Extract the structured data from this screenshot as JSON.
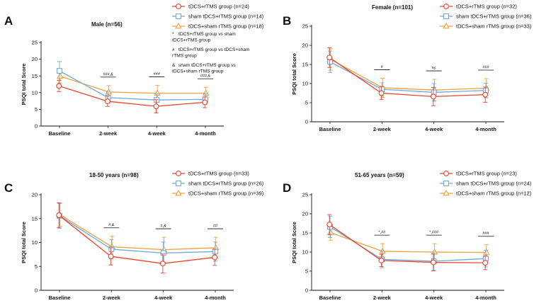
{
  "figure": {
    "ylabel": "PSQI total Score",
    "xcats": [
      "Baseline",
      "2-week",
      "4-week",
      "4-month"
    ],
    "colors": {
      "tdcs_rtms": "#e8452c",
      "sham_tdcs_rtms": "#6fa8dc",
      "tdcs_sham_rtms": "#f0a03c"
    },
    "marker_names": {
      "tdcs_rtms": "circle",
      "sham_tdcs_rtms": "square",
      "tdcs_sham_rtms": "triangle"
    }
  },
  "chart_data": [
    {
      "panel": "A",
      "type": "line",
      "title": "Male (n=56)",
      "show_title": true,
      "xlabel": "",
      "ylabel": "PSQI total Score",
      "categories": [
        "Baseline",
        "2-week",
        "4-week",
        "4-month"
      ],
      "ylim": [
        0,
        25
      ],
      "yticks": [
        0,
        5,
        10,
        15,
        20,
        25
      ],
      "legend_position": "top-right",
      "series": [
        {
          "key": "tdcs_rtms",
          "name": "tDCS+rTMS group (n=24)",
          "values": [
            12.0,
            7.4,
            5.9,
            7.1
          ],
          "err": [
            1.7,
            1.5,
            2.0,
            1.6
          ]
        },
        {
          "key": "sham_tdcs_rtms",
          "name": "sham tDCS+rTMS group (n=14)",
          "values": [
            16.5,
            8.5,
            7.8,
            8.0
          ],
          "err": [
            2.8,
            1.7,
            1.8,
            1.6
          ]
        },
        {
          "key": "tdcs_sham_rtms",
          "name": "tDCS+sham rTMS group (n=18)",
          "values": [
            14.9,
            10.2,
            9.8,
            9.8
          ],
          "err": [
            2.0,
            1.9,
            2.4,
            1.8
          ]
        }
      ],
      "annotations": [
        "###,&",
        "###",
        "###,&"
      ],
      "notes": [
        {
          "sym": "*",
          "lines": [
            "tDCS+rTMS group vs sham",
            "tDCS+rTMS group"
          ]
        },
        {
          "sym": "#",
          "lines": [
            "tDCS+rTMS group vs tDCS+sham",
            "rTMS group"
          ]
        },
        {
          "sym": "&",
          "lines": [
            "sham tDCS+rTMS group vs",
            "tDCS+sham rTMS group"
          ]
        }
      ]
    },
    {
      "panel": "B",
      "type": "line",
      "title": "Female (n=101)",
      "show_title": true,
      "xlabel": "",
      "ylabel": "PSQI total Score",
      "categories": [
        "Baseline",
        "2-week",
        "4-week",
        "4-month"
      ],
      "ylim": [
        0,
        25
      ],
      "yticks": [
        0,
        5,
        10,
        15,
        20,
        25
      ],
      "legend_position": "top-right",
      "series": [
        {
          "key": "tdcs_rtms",
          "name": "tDCS+rTMS group (n=32)",
          "values": [
            16.8,
            7.5,
            6.6,
            7.1
          ],
          "err": [
            2.6,
            1.7,
            2.4,
            2.0
          ]
        },
        {
          "key": "sham_tdcs_rtms",
          "name": "sham tDCS+rTMS group (n=36)",
          "values": [
            15.7,
            8.5,
            7.7,
            8.2
          ],
          "err": [
            2.8,
            1.7,
            2.3,
            1.9
          ]
        },
        {
          "key": "tdcs_sham_rtms",
          "name": "tDCS+sham rTMS group (n=33)",
          "values": [
            16.3,
            8.9,
            8.3,
            8.8
          ],
          "err": [
            2.8,
            2.5,
            2.8,
            2.5
          ]
        }
      ],
      "annotations": [
        "#",
        "ns",
        "###"
      ],
      "notes": []
    },
    {
      "panel": "C",
      "type": "line",
      "title": "18-50 years (n=98)",
      "show_title": true,
      "xlabel": "",
      "ylabel": "PSQI total Score",
      "categories": [
        "Baseline",
        "2-week",
        "4-week",
        "4-month"
      ],
      "ylim": [
        0,
        20
      ],
      "yticks": [
        0,
        5,
        10,
        15,
        20
      ],
      "legend_position": "top-right",
      "series": [
        {
          "key": "tdcs_rtms",
          "name": "tDCS+rTMS group (n=33)",
          "values": [
            15.7,
            7.1,
            5.6,
            6.9
          ],
          "err": [
            2.6,
            1.8,
            2.0,
            1.7
          ]
        },
        {
          "key": "sham_tdcs_rtms",
          "name": "sham tDCS+rTMS group (n=26)",
          "values": [
            15.6,
            8.6,
            7.8,
            8.1
          ],
          "err": [
            2.6,
            2.0,
            2.3,
            2.0
          ]
        },
        {
          "key": "tdcs_sham_rtms",
          "name": "tDCS+sham rTMS group (n=39)",
          "values": [
            15.8,
            9.1,
            8.5,
            8.9
          ],
          "err": [
            2.4,
            2.2,
            2.6,
            2.2
          ]
        }
      ],
      "annotations": [
        "#,&",
        "#,&",
        "##"
      ],
      "notes": []
    },
    {
      "panel": "D",
      "type": "line",
      "title": "51-65 years (n=59)",
      "show_title": true,
      "xlabel": "",
      "ylabel": "PSQI total Score",
      "categories": [
        "Baseline",
        "2-week",
        "4-week",
        "4-month"
      ],
      "ylim": [
        0,
        25
      ],
      "yticks": [
        0,
        5,
        10,
        15,
        20,
        25
      ],
      "legend_position": "top-right",
      "series": [
        {
          "key": "tdcs_rtms",
          "name": "tDCS+rTMS group (n=23)",
          "values": [
            17.2,
            7.8,
            7.3,
            7.2
          ],
          "err": [
            2.6,
            1.6,
            2.2,
            1.8
          ]
        },
        {
          "key": "sham_tdcs_rtms",
          "name": "sham tDCS+rTMS group (n=24)",
          "values": [
            16.6,
            8.1,
            7.6,
            8.3
          ],
          "err": [
            2.8,
            2.2,
            2.4,
            2.2
          ]
        },
        {
          "key": "tdcs_sham_rtms",
          "name": "tDCS+sham rTMS group (n=12)",
          "values": [
            15.1,
            10.2,
            10.0,
            9.9
          ],
          "err": [
            2.0,
            2.0,
            2.2,
            2.0
          ]
        }
      ],
      "annotations": [
        "*,##",
        "*,###",
        "###"
      ],
      "notes": []
    }
  ]
}
